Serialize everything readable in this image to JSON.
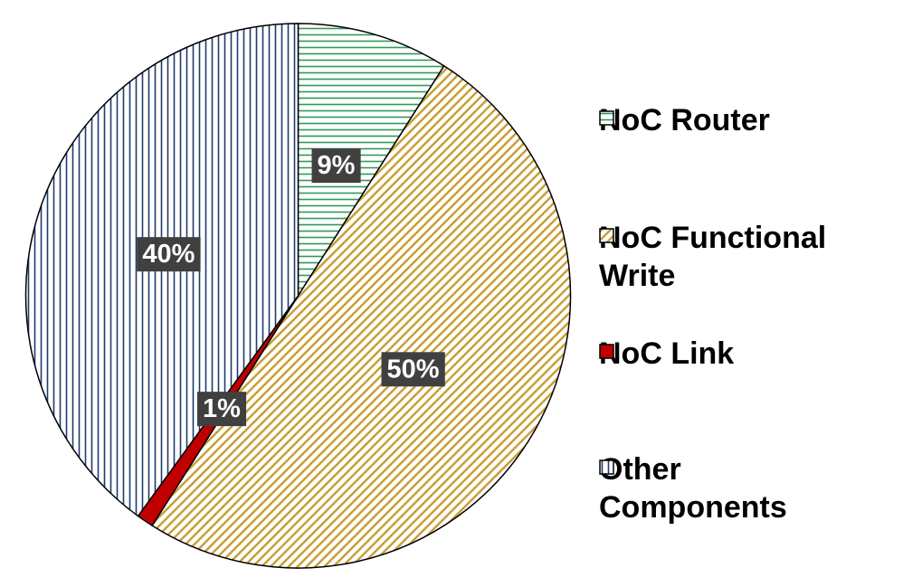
{
  "chart_data": {
    "type": "pie",
    "categories": [
      "NoC Router",
      "NoC Functional Write",
      "NoC Link",
      "Other Components"
    ],
    "values": [
      9,
      50,
      1,
      40
    ],
    "value_labels": [
      "9%",
      "50%",
      "1%",
      "40%"
    ],
    "colors": [
      "#2e9a57",
      "#c79a2e",
      "#c00000",
      "#1f3a6e"
    ],
    "hatches": [
      "horizontal",
      "diagonal",
      "solid",
      "vertical"
    ],
    "legend": "right"
  }
}
